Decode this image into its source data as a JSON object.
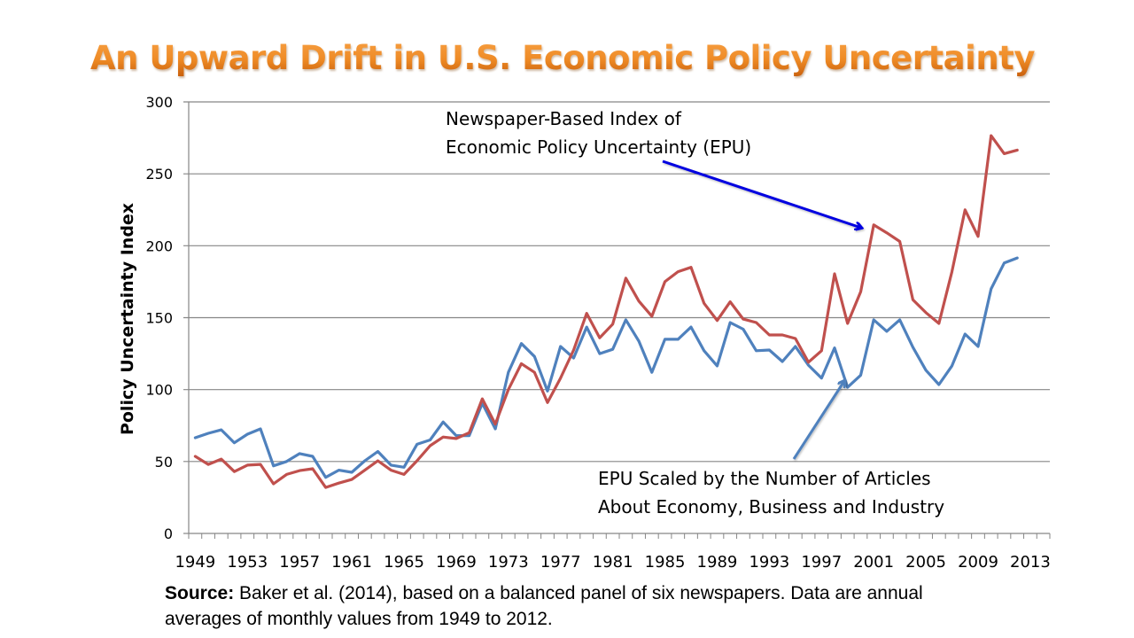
{
  "slide": {
    "title": "An Upward Drift in U.S. Economic Policy Uncertainty",
    "annotations": {
      "epu_line1": "Newspaper-Based Index of",
      "epu_line2": "Economic Policy Uncertainty (EPU)",
      "scaled_line1": "EPU Scaled by the Number of Articles",
      "scaled_line2": "About Economy, Business and Industry"
    },
    "source_label": "Source:",
    "source_text": " Baker et al. (2014), based on a balanced panel of six newspapers.  Data are annual averages of monthly values from 1949 to 2012."
  },
  "chart_data": {
    "type": "line",
    "title": "An Upward Drift in U.S. Economic Policy Uncertainty",
    "xlabel": "",
    "ylabel": "Policy Uncertainty Index",
    "ylim": [
      0,
      300
    ],
    "yticks": [
      0,
      50,
      100,
      150,
      200,
      250,
      300
    ],
    "xlim": [
      1949,
      2013
    ],
    "xtick_labels": [
      "1949",
      "1953",
      "1957",
      "1961",
      "1965",
      "1969",
      "1973",
      "1977",
      "1981",
      "1985",
      "1989",
      "1993",
      "1997",
      "2001",
      "2005",
      "2009",
      "2013"
    ],
    "grid": "horizontal",
    "legend": "none (inline annotations)",
    "colors": {
      "epu": "#c0504d",
      "scaled": "#4f81bd",
      "arrow_epu": "#0000e0",
      "arrow_scaled": "#4f81bd",
      "title": "#ee8a25"
    },
    "x": [
      1949,
      1950,
      1951,
      1952,
      1953,
      1954,
      1955,
      1956,
      1957,
      1958,
      1959,
      1960,
      1961,
      1962,
      1963,
      1964,
      1965,
      1966,
      1967,
      1968,
      1969,
      1970,
      1971,
      1972,
      1973,
      1974,
      1975,
      1976,
      1977,
      1978,
      1979,
      1980,
      1981,
      1982,
      1983,
      1984,
      1985,
      1986,
      1987,
      1988,
      1989,
      1990,
      1991,
      1992,
      1993,
      1994,
      1995,
      1996,
      1997,
      1998,
      1999,
      2000,
      2001,
      2002,
      2003,
      2004,
      2005,
      2006,
      2007,
      2008,
      2009,
      2010,
      2011,
      2012
    ],
    "series": [
      {
        "name": "Newspaper-Based Index of Economic Policy Uncertainty (EPU)",
        "key": "epu",
        "values": [
          53.6,
          48,
          51.7,
          43,
          47.5,
          48,
          34.5,
          41,
          43.7,
          45,
          32,
          35,
          37.5,
          44,
          50.5,
          44,
          41,
          50.5,
          61,
          67,
          66,
          70,
          93.6,
          76,
          100,
          118,
          112,
          91,
          108,
          127.5,
          153,
          136,
          145.5,
          177.5,
          161.5,
          151,
          175,
          182,
          185,
          160,
          148,
          161,
          149,
          146.6,
          138,
          138,
          135.5,
          119,
          127,
          180.5,
          146,
          168,
          214.5,
          209,
          203,
          162.5,
          153.5,
          146,
          182,
          225,
          206.5,
          276.5,
          264,
          266.5
        ]
      },
      {
        "name": "EPU Scaled by the Number of Articles About Economy, Business and Industry",
        "key": "scaled",
        "values": [
          66.5,
          69.6,
          72,
          63,
          69,
          72.7,
          47,
          50,
          55.5,
          53.6,
          39,
          44,
          42.5,
          50.5,
          57,
          47.5,
          46,
          62,
          65,
          77.5,
          68,
          68,
          90.5,
          72.7,
          112,
          132,
          123,
          99,
          130,
          122,
          143.5,
          125,
          128,
          148.5,
          133.7,
          112,
          135,
          135,
          143.5,
          127,
          116.5,
          146.6,
          142,
          127,
          127.5,
          119.5,
          130,
          117,
          108,
          129,
          101.6,
          110,
          148.5,
          140.5,
          148.5,
          129.5,
          113.5,
          103.5,
          116.5,
          138.6,
          130,
          170,
          188,
          191.5
        ]
      }
    ]
  }
}
